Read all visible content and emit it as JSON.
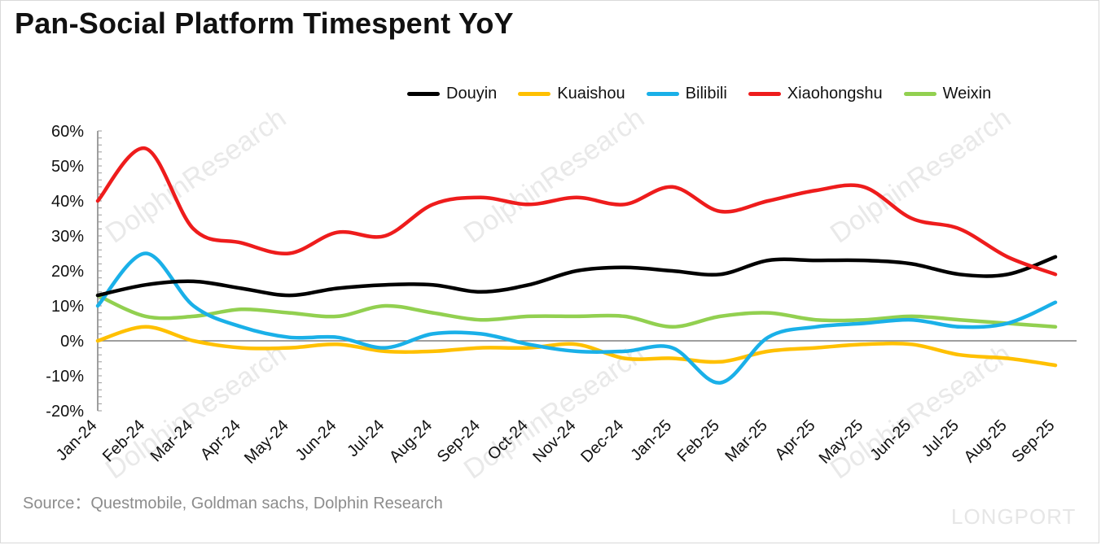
{
  "title": "Pan-Social Platform Timespent YoY",
  "source": "Source：Questmobile, Goldman sachs, Dolphin Research",
  "watermark": "DolphinResearch",
  "brand_mark": "LONGPORT",
  "chart_data": {
    "type": "line",
    "title": "Pan-Social Platform Timespent YoY",
    "xlabel": "",
    "ylabel": "",
    "ylim": [
      -0.2,
      0.6
    ],
    "yticks": [
      "60%",
      "50%",
      "40%",
      "30%",
      "20%",
      "10%",
      "0%",
      "-10%",
      "-20%"
    ],
    "legend_position": "top-right",
    "grid": false,
    "categories": [
      "Jan-24",
      "Feb-24",
      "Mar-24",
      "Apr-24",
      "May-24",
      "Jun-24",
      "Jul-24",
      "Aug-24",
      "Sep-24",
      "Oct-24",
      "Nov-24",
      "Dec-24",
      "Jan-25",
      "Feb-25",
      "Mar-25",
      "Apr-25",
      "May-25",
      "Jun-25",
      "Jul-25",
      "Aug-25",
      "Sep-25"
    ],
    "series": [
      {
        "name": "Douyin",
        "color": "#000000",
        "values": [
          0.13,
          0.16,
          0.17,
          0.15,
          0.13,
          0.15,
          0.16,
          0.16,
          0.14,
          0.16,
          0.2,
          0.21,
          0.2,
          0.19,
          0.23,
          0.23,
          0.23,
          0.22,
          0.19,
          0.19,
          0.24
        ]
      },
      {
        "name": "Kuaishou",
        "color": "#FFC000",
        "values": [
          0.0,
          0.04,
          0.0,
          -0.02,
          -0.02,
          -0.01,
          -0.03,
          -0.03,
          -0.02,
          -0.02,
          -0.01,
          -0.05,
          -0.05,
          -0.06,
          -0.03,
          -0.02,
          -0.01,
          -0.01,
          -0.04,
          -0.05,
          -0.07
        ]
      },
      {
        "name": "Bilibili",
        "color": "#1AB0E8",
        "values": [
          0.1,
          0.25,
          0.1,
          0.04,
          0.01,
          0.01,
          -0.02,
          0.02,
          0.02,
          -0.01,
          -0.03,
          -0.03,
          -0.02,
          -0.12,
          0.01,
          0.04,
          0.05,
          0.06,
          0.04,
          0.05,
          0.11
        ]
      },
      {
        "name": "Xiaohongshu",
        "color": "#EE1C1C",
        "values": [
          0.4,
          0.55,
          0.32,
          0.28,
          0.25,
          0.31,
          0.3,
          0.39,
          0.41,
          0.39,
          0.41,
          0.39,
          0.44,
          0.37,
          0.4,
          0.43,
          0.44,
          0.35,
          0.32,
          0.24,
          0.19
        ]
      },
      {
        "name": "Weixin",
        "color": "#92D050",
        "values": [
          0.13,
          0.07,
          0.07,
          0.09,
          0.08,
          0.07,
          0.1,
          0.08,
          0.06,
          0.07,
          0.07,
          0.07,
          0.04,
          0.07,
          0.08,
          0.06,
          0.06,
          0.07,
          0.06,
          0.05,
          0.04
        ]
      }
    ]
  }
}
